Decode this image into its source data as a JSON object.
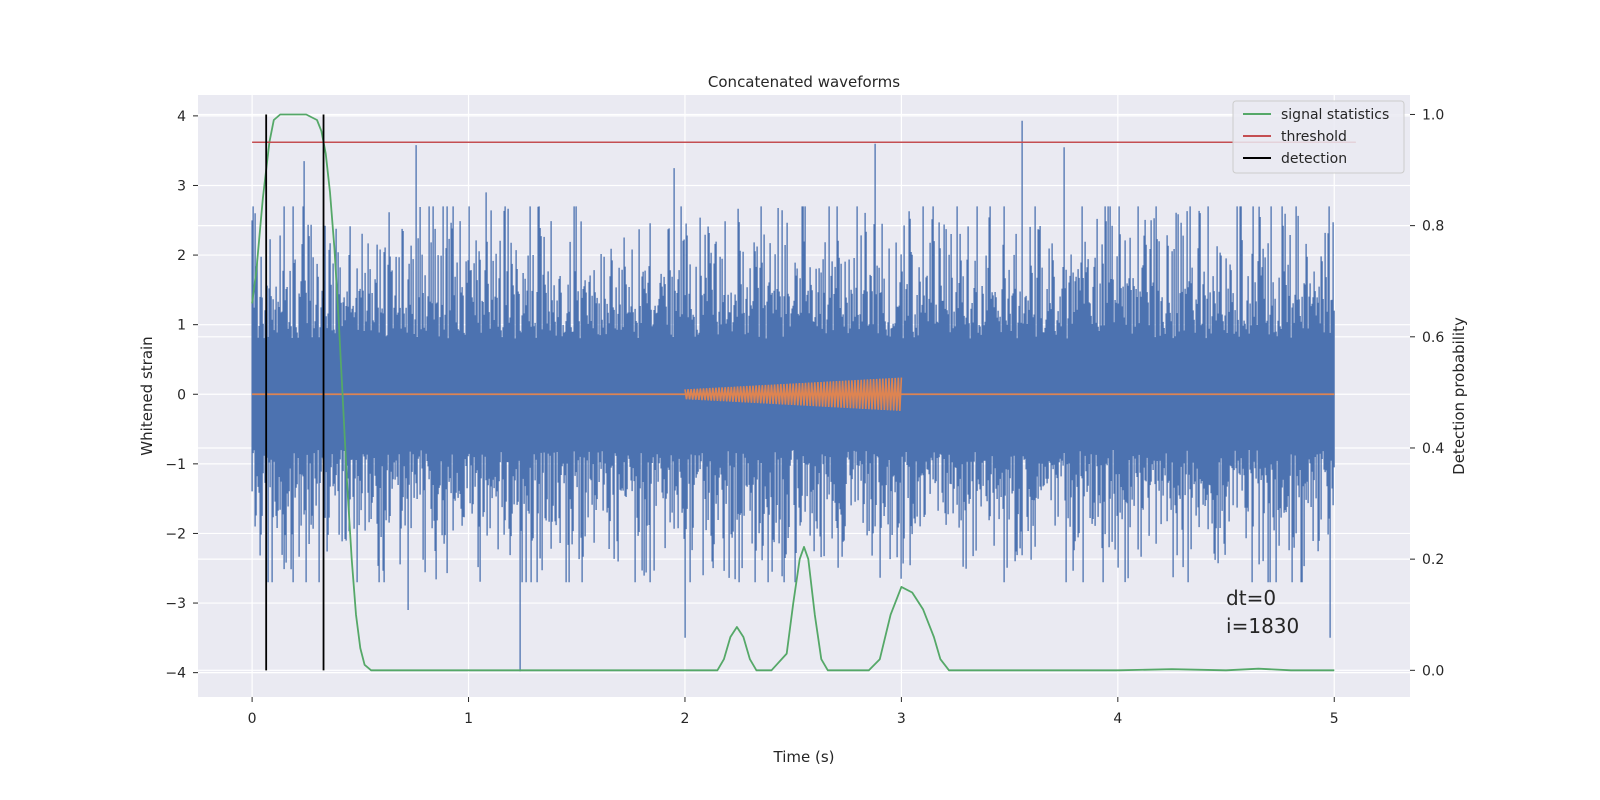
{
  "chart_data": {
    "type": "line",
    "title": "Concatenated waveforms",
    "xlabel": "Time (s)",
    "ylabel": "Whitened strain",
    "ylabel_right": "Detection probability",
    "xlim": [
      -0.25,
      5.35
    ],
    "ylim": [
      -4.35,
      4.3
    ],
    "ylim_right": [
      -0.048,
      1.035
    ],
    "xticks": [
      "0",
      "1",
      "2",
      "3",
      "4",
      "5"
    ],
    "xtick_values": [
      0,
      1,
      2,
      3,
      4,
      5
    ],
    "yticks": [
      "4",
      "3",
      "2",
      "1",
      "0",
      "−1",
      "−2",
      "−3",
      "−4"
    ],
    "ytick_values": [
      4,
      3,
      2,
      1,
      0,
      -1,
      -2,
      -3,
      -4
    ],
    "yticks_right": [
      "1.0",
      "0.8",
      "0.6",
      "0.4",
      "0.2",
      "0.0"
    ],
    "ytick_right_values": [
      1.0,
      0.8,
      0.6,
      0.4,
      0.2,
      0.0
    ],
    "grid": true,
    "legend_position": "top-right",
    "legend": [
      {
        "label": "signal statistics",
        "color": "#55a868"
      },
      {
        "label": "threshold",
        "color": "#c44e52"
      },
      {
        "label": "detection",
        "color": "#000000"
      }
    ],
    "colors": {
      "noise": "#4c72b0",
      "injection": "#dd8452",
      "signal_statistics": "#55a868",
      "threshold": "#c44e52",
      "detection": "#000000",
      "background": "#eaeaf2"
    },
    "series": [
      {
        "name": "signal statistics",
        "axis": "right",
        "x": [
          0.0,
          0.02,
          0.05,
          0.08,
          0.1,
          0.13,
          0.16,
          0.2,
          0.25,
          0.3,
          0.32,
          0.34,
          0.36,
          0.38,
          0.4,
          0.42,
          0.44,
          0.46,
          0.48,
          0.5,
          0.52,
          0.55,
          0.6,
          1.0,
          1.5,
          2.0,
          2.15,
          2.18,
          2.21,
          2.24,
          2.27,
          2.3,
          2.33,
          2.4,
          2.47,
          2.5,
          2.53,
          2.55,
          2.57,
          2.6,
          2.63,
          2.66,
          2.7,
          2.85,
          2.9,
          2.95,
          3.0,
          3.05,
          3.1,
          3.15,
          3.18,
          3.22,
          3.3,
          3.6,
          4.0,
          4.25,
          4.5,
          4.65,
          4.8,
          5.0
        ],
        "y": [
          0.66,
          0.72,
          0.85,
          0.95,
          0.99,
          1.0,
          1.0,
          1.0,
          1.0,
          0.99,
          0.97,
          0.93,
          0.86,
          0.76,
          0.63,
          0.48,
          0.33,
          0.2,
          0.1,
          0.04,
          0.01,
          0.0,
          0.0,
          0.0,
          0.0,
          0.0,
          0.0,
          0.02,
          0.06,
          0.078,
          0.06,
          0.02,
          0.0,
          0.0,
          0.03,
          0.12,
          0.2,
          0.222,
          0.2,
          0.1,
          0.02,
          0.0,
          0.0,
          0.0,
          0.02,
          0.1,
          0.15,
          0.14,
          0.11,
          0.06,
          0.02,
          0.0,
          0.0,
          0.0,
          0.0,
          0.002,
          0.0,
          0.003,
          0.0,
          0.0
        ]
      },
      {
        "name": "threshold",
        "axis": "right",
        "x": [
          0.0,
          5.1
        ],
        "y": [
          0.95,
          0.95
        ]
      },
      {
        "name": "detection",
        "axis": "right",
        "lines_x": [
          0.065,
          0.33
        ],
        "y_range": [
          0.0,
          1.0
        ]
      }
    ],
    "noise": {
      "name": "whitened strain",
      "x_range": [
        0.0,
        5.0
      ],
      "envelope": 0.8,
      "typical_peak": 2.0,
      "max_peak": 3.93,
      "min_peak": -3.98,
      "notable_peaks": [
        {
          "x": 0.76,
          "y": 3.58
        },
        {
          "x": 0.24,
          "y": 3.35
        },
        {
          "x": 1.08,
          "y": 2.9
        },
        {
          "x": 1.95,
          "y": 3.25
        },
        {
          "x": 2.88,
          "y": 3.6
        },
        {
          "x": 3.56,
          "y": 3.93
        },
        {
          "x": 3.75,
          "y": 3.55
        },
        {
          "x": 0.72,
          "y": -3.1
        },
        {
          "x": 1.24,
          "y": -3.98
        },
        {
          "x": 2.0,
          "y": -3.5
        },
        {
          "x": 3.0,
          "y": -2.65
        },
        {
          "x": 4.98,
          "y": -3.5
        }
      ]
    },
    "injection": {
      "name": "injected waveform",
      "x_range": [
        2.0,
        3.0
      ],
      "start_amplitude": 0.07,
      "end_amplitude": 0.24
    },
    "annotation": {
      "lines": [
        "dt=0",
        "i=1830"
      ],
      "x": 4.5,
      "y": -3.03
    }
  }
}
